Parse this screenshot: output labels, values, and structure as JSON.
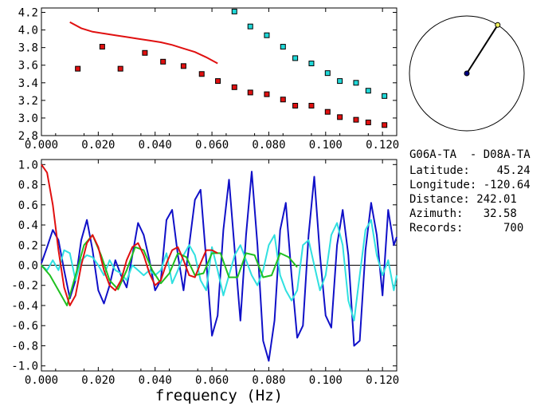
{
  "chart_data": [
    {
      "type": "scatter",
      "xlabel": "",
      "ylabel": "",
      "xlim": [
        0.0,
        0.125
      ],
      "ylim": [
        2.8,
        4.25
      ],
      "x_ticks": [
        "0.000",
        "0.020",
        "0.040",
        "0.060",
        "0.080",
        "0.100",
        "0.120"
      ],
      "y_ticks": [
        "2.8",
        "3.0",
        "3.2",
        "3.4",
        "3.6",
        "3.8",
        "4.0",
        "4.2"
      ],
      "curve_color": "#e01010",
      "curve": {
        "x": [
          0.01,
          0.014,
          0.018,
          0.022,
          0.026,
          0.03,
          0.034,
          0.038,
          0.042,
          0.046,
          0.05,
          0.054,
          0.058,
          0.062
        ],
        "y": [
          4.09,
          4.02,
          3.98,
          3.96,
          3.94,
          3.92,
          3.9,
          3.88,
          3.86,
          3.83,
          3.79,
          3.75,
          3.69,
          3.62
        ]
      },
      "series": [
        {
          "color": "#e01010",
          "x": [
            0.0128,
            0.0214,
            0.0278,
            0.0364,
            0.0428,
            0.05,
            0.0564,
            0.0621,
            0.0679,
            0.0735,
            0.0793,
            0.085,
            0.0893,
            0.095,
            0.1007,
            0.105,
            0.1107,
            0.115,
            0.1207
          ],
          "y": [
            3.56,
            3.81,
            3.56,
            3.74,
            3.64,
            3.59,
            3.5,
            3.42,
            3.35,
            3.29,
            3.27,
            3.21,
            3.14,
            3.14,
            3.07,
            3.01,
            2.98,
            2.95,
            2.92
          ]
        },
        {
          "color": "#20d8d8",
          "x": [
            0.0679,
            0.0735,
            0.0793,
            0.085,
            0.0893,
            0.095,
            0.1007,
            0.105,
            0.1107,
            0.115,
            0.1207
          ],
          "y": [
            4.21,
            4.04,
            3.94,
            3.81,
            3.68,
            3.62,
            3.51,
            3.42,
            3.4,
            3.31,
            3.25
          ]
        }
      ]
    },
    {
      "type": "line",
      "xlabel": "frequency (Hz)",
      "ylabel": "",
      "xlim": [
        0.0,
        0.125
      ],
      "ylim": [
        -1.05,
        1.05
      ],
      "x_ticks": [
        "0.000",
        "0.020",
        "0.040",
        "0.060",
        "0.080",
        "0.100",
        "0.120"
      ],
      "y_ticks": [
        "1.0",
        "0.8",
        "0.6",
        "0.4",
        "0.2",
        "0.0",
        "-0.2",
        "-0.4",
        "-0.6",
        "-0.8",
        "-1.0"
      ],
      "zero_line": true,
      "series": [
        {
          "color": "#1010c8",
          "x": [
            0.0,
            0.002,
            0.004,
            0.006,
            0.008,
            0.01,
            0.012,
            0.014,
            0.016,
            0.018,
            0.02,
            0.022,
            0.024,
            0.026,
            0.028,
            0.03,
            0.032,
            0.034,
            0.036,
            0.038,
            0.04,
            0.042,
            0.044,
            0.046,
            0.048,
            0.05,
            0.052,
            0.054,
            0.056,
            0.058,
            0.06,
            0.062,
            0.064,
            0.066,
            0.068,
            0.07,
            0.072,
            0.074,
            0.076,
            0.078,
            0.08,
            0.082,
            0.084,
            0.086,
            0.088,
            0.09,
            0.092,
            0.094,
            0.096,
            0.098,
            0.1,
            0.102,
            0.104,
            0.106,
            0.108,
            0.11,
            0.112,
            0.114,
            0.116,
            0.118,
            0.12,
            0.122,
            0.124,
            0.125
          ],
          "y": [
            0.02,
            0.18,
            0.35,
            0.25,
            -0.05,
            -0.33,
            -0.15,
            0.25,
            0.45,
            0.15,
            -0.25,
            -0.38,
            -0.2,
            0.05,
            -0.1,
            -0.22,
            0.1,
            0.42,
            0.3,
            0.05,
            -0.25,
            -0.15,
            0.45,
            0.55,
            0.1,
            -0.25,
            0.2,
            0.65,
            0.75,
            0.05,
            -0.7,
            -0.5,
            0.35,
            0.85,
            0.15,
            -0.55,
            0.3,
            0.93,
            0.2,
            -0.75,
            -0.95,
            -0.55,
            0.35,
            0.62,
            -0.1,
            -0.72,
            -0.6,
            0.3,
            0.88,
            0.1,
            -0.5,
            -0.62,
            0.2,
            0.55,
            0.1,
            -0.8,
            -0.75,
            0.15,
            0.62,
            0.3,
            -0.3,
            0.55,
            0.2,
            0.28
          ]
        },
        {
          "color": "#30e0e0",
          "x": [
            0.0,
            0.002,
            0.004,
            0.006,
            0.008,
            0.01,
            0.012,
            0.014,
            0.016,
            0.018,
            0.02,
            0.022,
            0.024,
            0.026,
            0.028,
            0.03,
            0.032,
            0.034,
            0.036,
            0.038,
            0.04,
            0.042,
            0.044,
            0.046,
            0.048,
            0.05,
            0.052,
            0.054,
            0.056,
            0.058,
            0.06,
            0.062,
            0.064,
            0.066,
            0.068,
            0.07,
            0.072,
            0.074,
            0.076,
            0.078,
            0.08,
            0.082,
            0.084,
            0.086,
            0.088,
            0.09,
            0.092,
            0.094,
            0.096,
            0.098,
            0.1,
            0.102,
            0.104,
            0.106,
            0.108,
            0.11,
            0.112,
            0.114,
            0.116,
            0.118,
            0.12,
            0.122,
            0.124,
            0.125
          ],
          "y": [
            0.0,
            -0.05,
            0.05,
            -0.05,
            0.15,
            0.12,
            -0.15,
            0.05,
            0.1,
            0.08,
            0.0,
            -0.1,
            0.05,
            -0.05,
            -0.08,
            -0.15,
            0.0,
            -0.05,
            -0.1,
            -0.05,
            -0.1,
            -0.05,
            0.12,
            -0.18,
            -0.05,
            0.1,
            0.2,
            0.1,
            -0.15,
            -0.25,
            0.18,
            -0.05,
            -0.3,
            -0.1,
            0.1,
            0.2,
            0.05,
            -0.1,
            -0.2,
            -0.05,
            0.2,
            0.3,
            -0.1,
            -0.25,
            -0.35,
            -0.25,
            0.2,
            0.25,
            0.0,
            -0.25,
            -0.1,
            0.3,
            0.42,
            0.2,
            -0.35,
            -0.55,
            -0.1,
            0.35,
            0.45,
            0.1,
            -0.1,
            0.05,
            -0.25,
            -0.1
          ]
        },
        {
          "color": "#20c020",
          "x": [
            0.0,
            0.003,
            0.006,
            0.009,
            0.012,
            0.015,
            0.018,
            0.021,
            0.024,
            0.027,
            0.03,
            0.033,
            0.036,
            0.039,
            0.042,
            0.045,
            0.048,
            0.051,
            0.054,
            0.057,
            0.06,
            0.063,
            0.066,
            0.069,
            0.072,
            0.075,
            0.078,
            0.081,
            0.084,
            0.087,
            0.09
          ],
          "y": [
            0.0,
            -0.1,
            -0.25,
            -0.4,
            -0.1,
            0.2,
            0.3,
            0.1,
            -0.15,
            -0.24,
            -0.05,
            0.18,
            0.15,
            -0.05,
            -0.18,
            -0.08,
            0.12,
            0.08,
            -0.1,
            -0.08,
            0.12,
            0.12,
            -0.12,
            -0.12,
            0.12,
            0.1,
            -0.12,
            -0.1,
            0.12,
            0.08,
            -0.02
          ]
        },
        {
          "color": "#e01010",
          "x": [
            0.0,
            0.002,
            0.004,
            0.006,
            0.008,
            0.01,
            0.012,
            0.014,
            0.016,
            0.018,
            0.02,
            0.022,
            0.024,
            0.026,
            0.028,
            0.03,
            0.032,
            0.034,
            0.036,
            0.038,
            0.04,
            0.042,
            0.044,
            0.046,
            0.048,
            0.05,
            0.052,
            0.054,
            0.056,
            0.058,
            0.06,
            0.062
          ],
          "y": [
            1.0,
            0.92,
            0.6,
            0.15,
            -0.22,
            -0.4,
            -0.3,
            0.0,
            0.22,
            0.3,
            0.18,
            -0.05,
            -0.2,
            -0.25,
            -0.15,
            0.05,
            0.18,
            0.22,
            0.1,
            -0.08,
            -0.2,
            -0.15,
            0.02,
            0.15,
            0.18,
            0.05,
            -0.1,
            -0.12,
            0.02,
            0.15,
            0.15,
            0.12
          ]
        }
      ]
    }
  ],
  "map": {
    "station_dot_color": "#000080",
    "end_dot_color": "#f0f060",
    "azimuth_deg": 32.58
  },
  "info": {
    "pair": "G06A-TA  - D08A-TA",
    "latitude": "Latitude:    45.24",
    "longitude": "Longitude: -120.64",
    "distance": "Distance: 242.01",
    "azimuth": "Azimuth:   32.58",
    "records": "Records:      700"
  }
}
